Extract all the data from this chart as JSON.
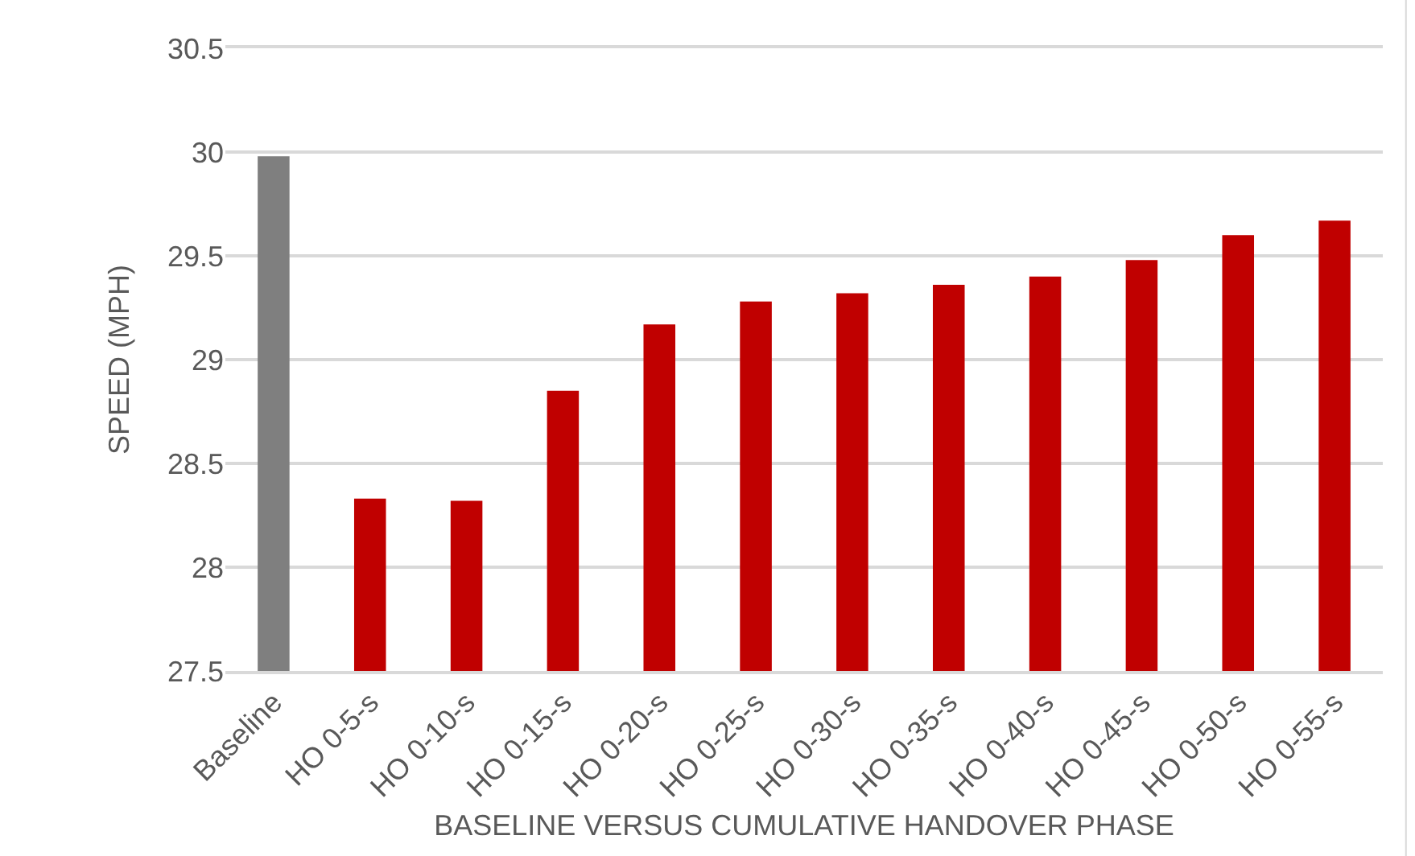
{
  "chart_data": {
    "type": "bar",
    "categories": [
      "Baseline",
      "HO 0-5-s",
      "HO 0-10-s",
      "HO 0-15-s",
      "HO 0-20-s",
      "HO 0-25-s",
      "HO 0-30-s",
      "HO 0-35-s",
      "HO 0-40-s",
      "HO 0-45-s",
      "HO 0-50-s",
      "HO 0-55-s"
    ],
    "values": [
      29.98,
      28.33,
      28.32,
      28.85,
      29.17,
      29.28,
      29.32,
      29.36,
      29.4,
      29.48,
      29.6,
      29.67
    ],
    "colors": [
      "#7f7f7f",
      "#c00000",
      "#c00000",
      "#c00000",
      "#c00000",
      "#c00000",
      "#c00000",
      "#c00000",
      "#c00000",
      "#c00000",
      "#c00000",
      "#c00000"
    ],
    "xlabel": "BASELINE VERSUS CUMULATIVE HANDOVER PHASE",
    "ylabel": "SPEED (MPH)",
    "ylim": [
      27.5,
      30.5
    ],
    "yticks": [
      27.5,
      28,
      28.5,
      29,
      29.5,
      30,
      30.5
    ],
    "grid": "y"
  }
}
